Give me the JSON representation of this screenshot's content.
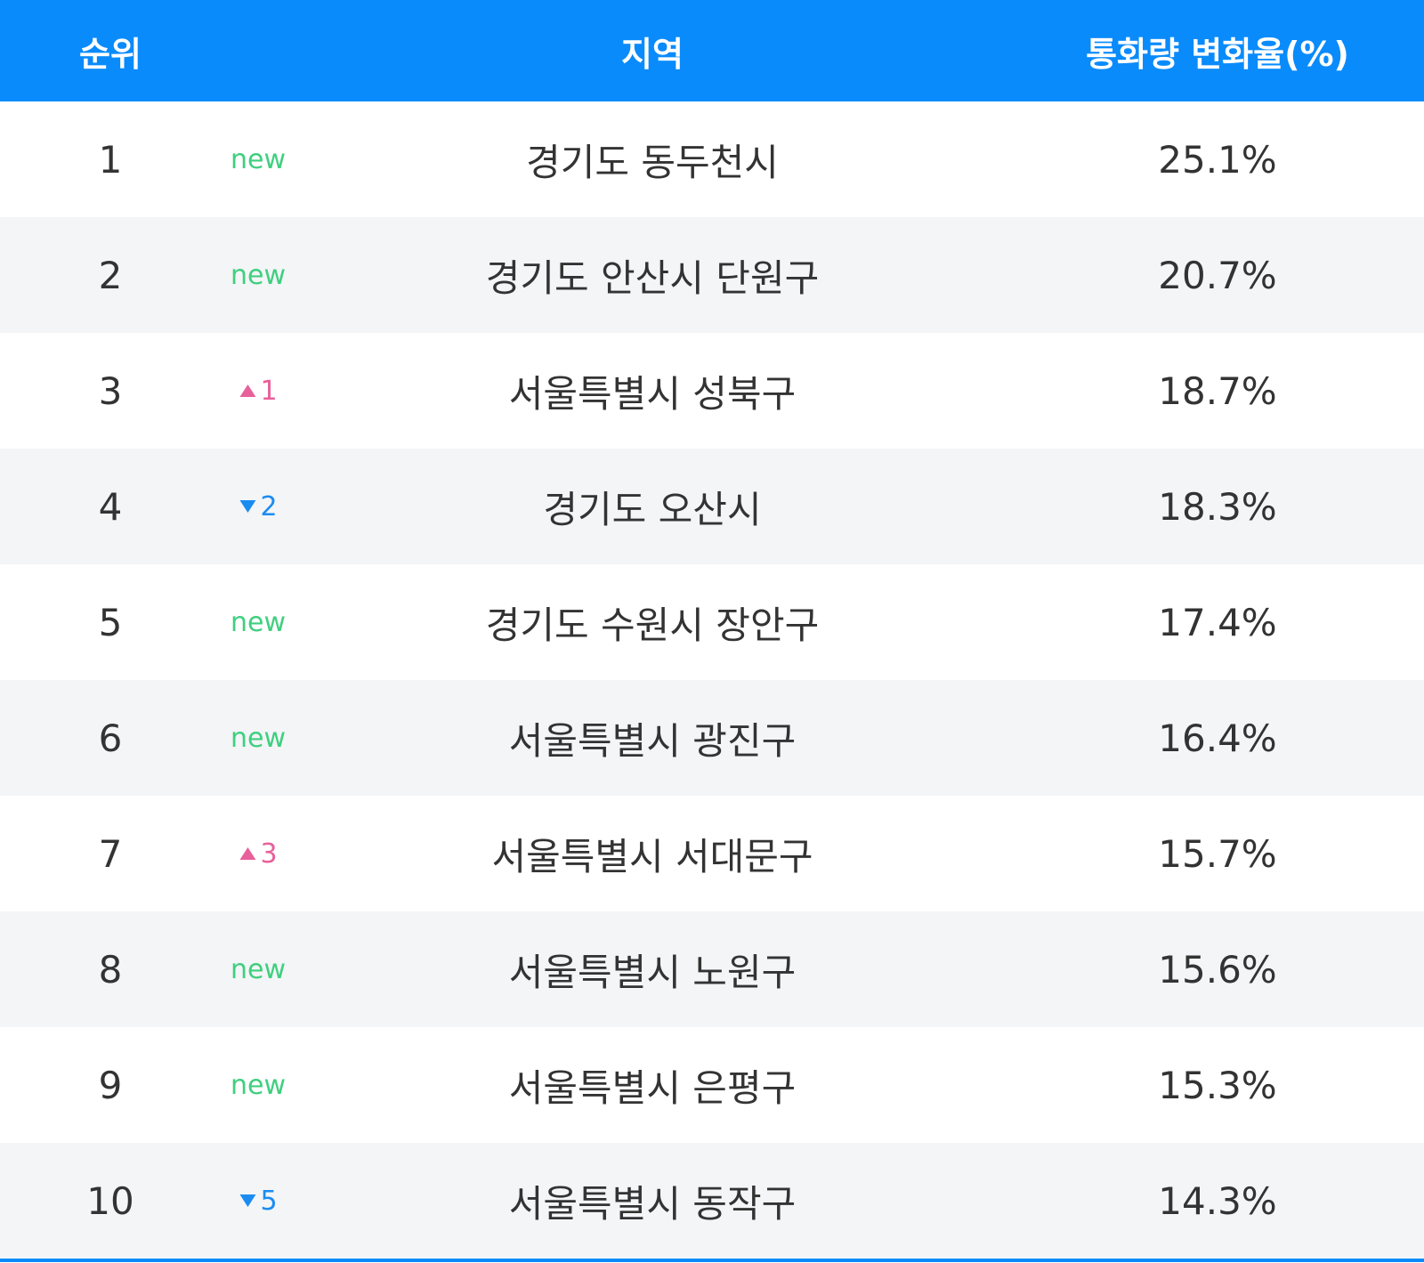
{
  "table": {
    "headers": [
      "순위",
      "지역",
      "통화량 변화율(%)"
    ],
    "rows": [
      {
        "rank": 1,
        "trend": "new",
        "change": "new",
        "region": "경기도 동두천시",
        "rate": "25.1%"
      },
      {
        "rank": 2,
        "trend": "new",
        "change": "new",
        "region": "경기도 안산시 단원구",
        "rate": "20.7%"
      },
      {
        "rank": 3,
        "trend": "up",
        "change": "1",
        "region": "서울특별시 성북구",
        "rate": "18.7%"
      },
      {
        "rank": 4,
        "trend": "down",
        "change": "2",
        "region": "경기도 오산시",
        "rate": "18.3%"
      },
      {
        "rank": 5,
        "trend": "new",
        "change": "new",
        "region": "경기도 수원시 장안구",
        "rate": "17.4%"
      },
      {
        "rank": 6,
        "trend": "new",
        "change": "new",
        "region": "서울특별시 광진구",
        "rate": "16.4%"
      },
      {
        "rank": 7,
        "trend": "up",
        "change": "3",
        "region": "서울특별시 서대문구",
        "rate": "15.7%"
      },
      {
        "rank": 8,
        "trend": "new",
        "change": "new",
        "region": "서울특별시 노원구",
        "rate": "15.6%"
      },
      {
        "rank": 9,
        "trend": "new",
        "change": "new",
        "region": "서울특별시 은평구",
        "rate": "15.3%"
      },
      {
        "rank": 10,
        "trend": "down",
        "change": "5",
        "region": "서울특별시 동작구",
        "rate": "14.3%"
      }
    ]
  }
}
